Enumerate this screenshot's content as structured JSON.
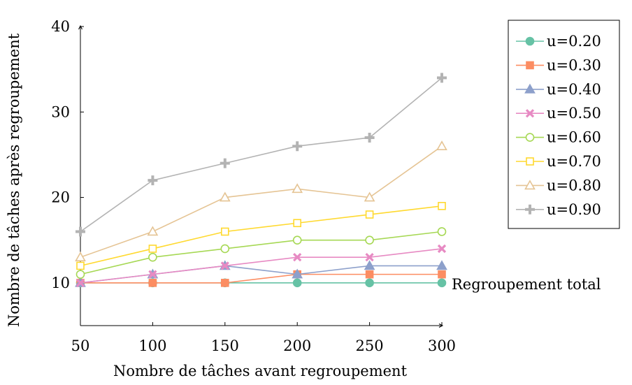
{
  "chart_data": {
    "type": "line",
    "title": "",
    "xlabel": "Nombre de tâches avant regroupement",
    "ylabel": "Nombre de tâches après regroupement",
    "x": [
      50,
      100,
      150,
      200,
      250,
      300
    ],
    "xticks": [
      "50",
      "100",
      "150",
      "200",
      "250",
      "300"
    ],
    "yticks": [
      "10",
      "20",
      "30",
      "40"
    ],
    "xlim": [
      50,
      300
    ],
    "ylim": [
      5,
      40
    ],
    "grid": false,
    "legend_position": "top-right outside",
    "annotation": "Regroupement total",
    "series": [
      {
        "name": "u=0.20",
        "color": "#66c2a5",
        "marker": "circle",
        "values": [
          10,
          10,
          10,
          10,
          10,
          10
        ]
      },
      {
        "name": "u=0.30",
        "color": "#fc8d62",
        "marker": "square",
        "values": [
          10,
          10,
          10,
          11,
          11,
          11
        ]
      },
      {
        "name": "u=0.40",
        "color": "#8da0cb",
        "marker": "triangle",
        "values": [
          10,
          11,
          12,
          11,
          12,
          12
        ]
      },
      {
        "name": "u=0.50",
        "color": "#e78ac3",
        "marker": "x",
        "values": [
          10,
          11,
          12,
          13,
          13,
          14
        ]
      },
      {
        "name": "u=0.60",
        "color": "#a6d854",
        "marker": "circle-open",
        "values": [
          11,
          13,
          14,
          15,
          15,
          16
        ]
      },
      {
        "name": "u=0.70",
        "color": "#ffd92f",
        "marker": "square-open",
        "values": [
          12,
          14,
          16,
          17,
          18,
          19
        ]
      },
      {
        "name": "u=0.80",
        "color": "#e5c494",
        "marker": "triangle-open",
        "values": [
          13,
          16,
          20,
          21,
          20,
          26
        ]
      },
      {
        "name": "u=0.90",
        "color": "#b3b3b3",
        "marker": "plus",
        "values": [
          16,
          22,
          24,
          26,
          27,
          34
        ]
      }
    ]
  }
}
